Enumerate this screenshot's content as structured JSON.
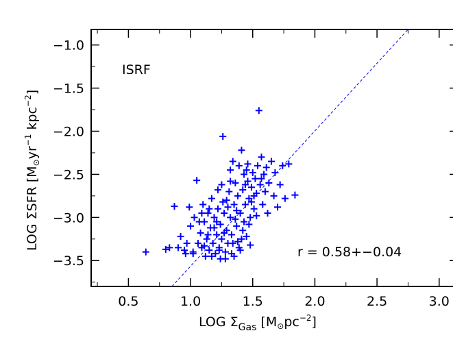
{
  "chart_data": {
    "type": "scatter",
    "title": "",
    "xlabel": {
      "prefix": "LOG ",
      "sigma": "Σ",
      "sub": "Gas",
      "unit_open": " [M",
      "sun": "⊙",
      "unit_mid": "pc",
      "exp": "−2",
      "unit_close": "]"
    },
    "ylabel": {
      "prefix": "LOG ΣSFR [M",
      "sun": "⊙",
      "yr": "yr",
      "exp1": "−1",
      "kpc": " kpc",
      "exp2": "−2",
      "close": "]"
    },
    "xlim": [
      0.2,
      3.15
    ],
    "ylim": [
      -3.8,
      -0.82
    ],
    "xticks": [
      0.5,
      1.0,
      1.5,
      2.0,
      2.5,
      3.0
    ],
    "xtick_labels": [
      "0.5",
      "1.0",
      "1.5",
      "2.0",
      "2.5",
      "3.0"
    ],
    "yticks": [
      -1.0,
      -1.5,
      -2.0,
      -2.5,
      -3.0,
      -3.5
    ],
    "ytick_labels": [
      "−1.0",
      "−1.5",
      "−2.0",
      "−2.5",
      "−3.0",
      "−3.5"
    ],
    "grid": false,
    "marker_color": "#0000ff",
    "line_color": "#0000ff",
    "series": [
      {
        "name": "ISRF",
        "label": "ISRF",
        "marker": "+",
        "points": [
          [
            0.64,
            -3.4
          ],
          [
            0.8,
            -3.37
          ],
          [
            0.83,
            -3.35
          ],
          [
            0.87,
            -2.87
          ],
          [
            0.9,
            -3.35
          ],
          [
            0.92,
            -3.22
          ],
          [
            0.95,
            -3.38
          ],
          [
            0.96,
            -3.42
          ],
          [
            0.97,
            -3.3
          ],
          [
            0.99,
            -2.88
          ],
          [
            1.0,
            -3.1
          ],
          [
            1.02,
            -3.42
          ],
          [
            1.03,
            -3.0
          ],
          [
            1.05,
            -2.57
          ],
          [
            1.06,
            -3.3
          ],
          [
            1.08,
            -3.18
          ],
          [
            1.09,
            -3.35
          ],
          [
            1.1,
            -2.85
          ],
          [
            1.11,
            -3.05
          ],
          [
            1.12,
            -3.45
          ],
          [
            1.13,
            -3.25
          ],
          [
            1.14,
            -2.95
          ],
          [
            1.15,
            -3.38
          ],
          [
            1.16,
            -3.12
          ],
          [
            1.17,
            -2.78
          ],
          [
            1.18,
            -3.3
          ],
          [
            1.19,
            -3.0
          ],
          [
            1.2,
            -3.42
          ],
          [
            1.21,
            -3.2
          ],
          [
            1.22,
            -2.9
          ],
          [
            1.22,
            -2.68
          ],
          [
            1.23,
            -3.35
          ],
          [
            1.24,
            -3.08
          ],
          [
            1.25,
            -2.62
          ],
          [
            1.25,
            -3.25
          ],
          [
            1.26,
            -2.06
          ],
          [
            1.27,
            -2.95
          ],
          [
            1.28,
            -3.4
          ],
          [
            1.29,
            -2.8
          ],
          [
            1.29,
            -3.15
          ],
          [
            1.3,
            -3.3
          ],
          [
            1.31,
            -2.7
          ],
          [
            1.32,
            -2.45
          ],
          [
            1.32,
            -3.0
          ],
          [
            1.33,
            -3.2
          ],
          [
            1.34,
            -2.35
          ],
          [
            1.35,
            -2.85
          ],
          [
            1.35,
            -3.45
          ],
          [
            1.36,
            -2.6
          ],
          [
            1.37,
            -3.1
          ],
          [
            1.38,
            -2.75
          ],
          [
            1.38,
            -3.28
          ],
          [
            1.39,
            -2.4
          ],
          [
            1.4,
            -2.95
          ],
          [
            1.4,
            -3.38
          ],
          [
            1.41,
            -2.22
          ],
          [
            1.42,
            -2.68
          ],
          [
            1.43,
            -3.05
          ],
          [
            1.43,
            -2.5
          ],
          [
            1.44,
            -2.85
          ],
          [
            1.45,
            -3.22
          ],
          [
            1.46,
            -2.58
          ],
          [
            1.46,
            -2.38
          ],
          [
            1.47,
            -2.78
          ],
          [
            1.48,
            -3.0
          ],
          [
            1.48,
            -3.32
          ],
          [
            1.49,
            -2.65
          ],
          [
            1.5,
            -2.48
          ],
          [
            1.51,
            -2.9
          ],
          [
            1.52,
            -2.55
          ],
          [
            1.53,
            -2.72
          ],
          [
            1.54,
            -2.4
          ],
          [
            1.55,
            -1.76
          ],
          [
            1.56,
            -2.62
          ],
          [
            1.57,
            -2.3
          ],
          [
            1.58,
            -2.85
          ],
          [
            1.59,
            -2.5
          ],
          [
            1.6,
            -2.7
          ],
          [
            1.61,
            -2.42
          ],
          [
            1.62,
            -2.95
          ],
          [
            1.63,
            -2.6
          ],
          [
            1.65,
            -2.35
          ],
          [
            1.67,
            -2.75
          ],
          [
            1.68,
            -2.48
          ],
          [
            1.7,
            -2.88
          ],
          [
            1.72,
            -2.62
          ],
          [
            1.74,
            -2.4
          ],
          [
            1.76,
            -2.78
          ],
          [
            1.79,
            -2.38
          ],
          [
            1.84,
            -2.74
          ],
          [
            1.02,
            -3.4
          ],
          [
            1.07,
            -3.05
          ],
          [
            1.11,
            -3.33
          ],
          [
            1.15,
            -2.9
          ],
          [
            1.19,
            -3.12
          ],
          [
            1.23,
            -3.38
          ],
          [
            1.27,
            -3.18
          ],
          [
            1.3,
            -2.88
          ],
          [
            1.33,
            -3.42
          ],
          [
            1.36,
            -3.02
          ],
          [
            1.39,
            -3.35
          ],
          [
            1.42,
            -3.15
          ],
          [
            1.44,
            -2.62
          ],
          [
            1.47,
            -3.08
          ],
          [
            1.51,
            -2.75
          ],
          [
            1.28,
            -3.48
          ],
          [
            1.34,
            -3.3
          ],
          [
            1.21,
            -3.05
          ],
          [
            1.17,
            -3.45
          ],
          [
            1.26,
            -2.82
          ],
          [
            1.32,
            -2.58
          ],
          [
            1.37,
            -2.92
          ],
          [
            1.41,
            -3.25
          ],
          [
            1.45,
            -2.45
          ],
          [
            1.49,
            -2.82
          ],
          [
            1.53,
            -2.98
          ],
          [
            1.57,
            -2.55
          ],
          [
            1.14,
            -3.2
          ],
          [
            1.09,
            -2.95
          ],
          [
            1.24,
            -3.48
          ]
        ]
      }
    ],
    "fit_line": {
      "points": [
        [
          0.85,
          -3.8
        ],
        [
          2.75,
          -0.82
        ]
      ]
    },
    "annotations": {
      "label": "ISRF",
      "r_text": "r = 0.58+−0.04"
    }
  }
}
